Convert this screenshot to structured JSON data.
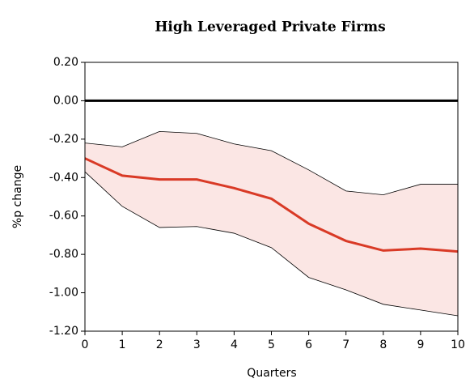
{
  "chart_data": {
    "type": "line",
    "title": "High Leveraged Private Firms",
    "xlabel": "Quarters",
    "ylabel": "%p change",
    "x": [
      0,
      1,
      2,
      3,
      4,
      5,
      6,
      7,
      8,
      9,
      10
    ],
    "values": [
      -0.3,
      -0.39,
      -0.41,
      -0.41,
      -0.455,
      -0.51,
      -0.64,
      -0.73,
      -0.78,
      -0.77,
      -0.785
    ],
    "upper": [
      -0.22,
      -0.24,
      -0.16,
      -0.17,
      -0.225,
      -0.26,
      -0.36,
      -0.47,
      -0.49,
      -0.435,
      -0.435
    ],
    "lower": [
      -0.37,
      -0.55,
      -0.66,
      -0.655,
      -0.69,
      -0.765,
      -0.92,
      -0.985,
      -1.06,
      -1.09,
      -1.12
    ],
    "color": "#d93a26",
    "band_color": "#fbe6e4",
    "bound_color": "#000000",
    "reference_line": 0,
    "xlim": [
      0,
      10
    ],
    "xticks": [
      0,
      1,
      2,
      3,
      4,
      5,
      6,
      7,
      8,
      9,
      10
    ],
    "ylim": [
      -1.2,
      0.2
    ],
    "yticks": [
      {
        "value": 0.2,
        "label": "0.20"
      },
      {
        "value": 0,
        "label": "0.00"
      },
      {
        "value": -0.2,
        "label": "-0.20"
      },
      {
        "value": -0.4,
        "label": "-0.40"
      },
      {
        "value": -0.6,
        "label": "-0.60"
      },
      {
        "value": -0.8,
        "label": "-0.80"
      },
      {
        "value": -1.0,
        "label": "-1.00"
      },
      {
        "value": -1.2,
        "label": "-1.20"
      }
    ]
  }
}
